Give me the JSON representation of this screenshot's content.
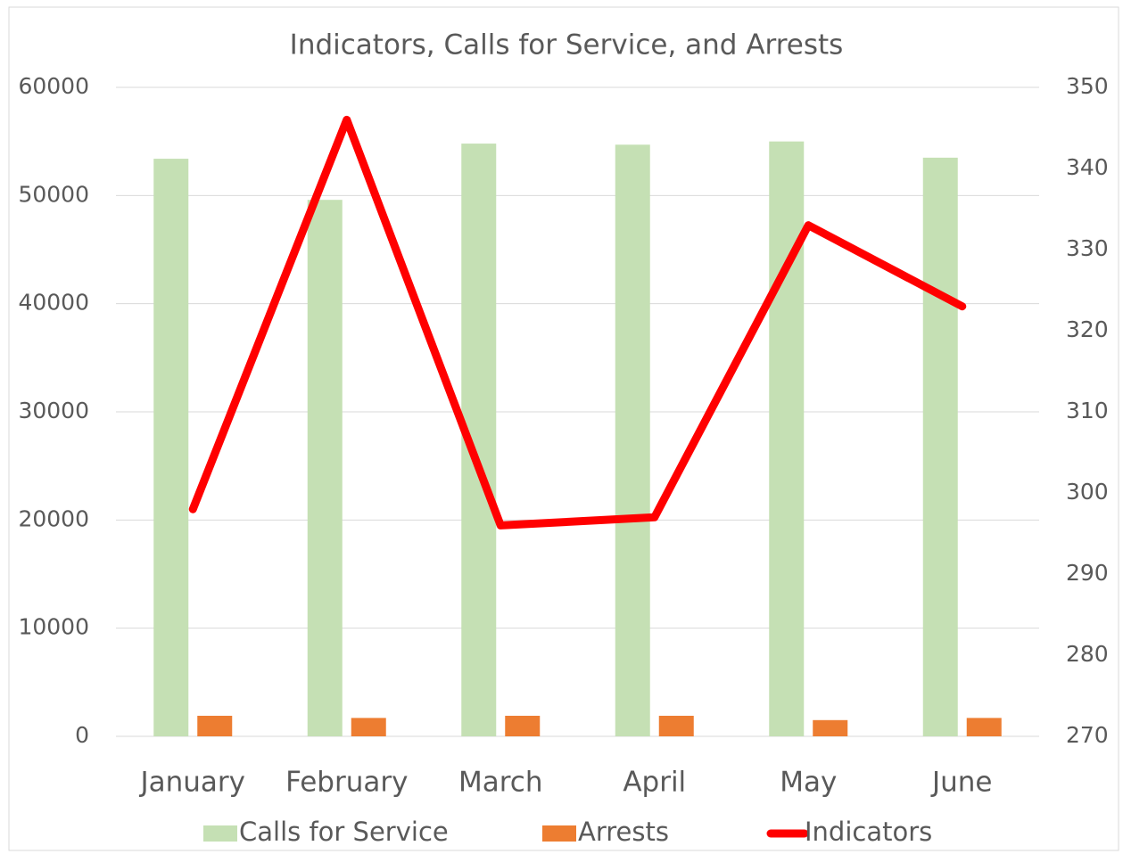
{
  "chart_data": {
    "type": "bar-line",
    "title": "Indicators, Calls for Service, and Arrests",
    "categories": [
      "January",
      "February",
      "March",
      "April",
      "May",
      "June"
    ],
    "series": [
      {
        "name": "Calls for Service",
        "type": "bar",
        "color": "#c5e0b4",
        "values": [
          53400,
          49600,
          54800,
          54700,
          55000,
          53500
        ]
      },
      {
        "name": "Arrests",
        "type": "bar",
        "color": "#ed7d31",
        "values": [
          1900,
          1700,
          1900,
          1900,
          1500,
          1700
        ]
      },
      {
        "name": "Indicators",
        "type": "line",
        "axis": "y2",
        "color": "#ff0000",
        "values": [
          298,
          346,
          296,
          297,
          333,
          323
        ]
      }
    ],
    "ylim": [
      0,
      60000
    ],
    "yticks": [
      0,
      10000,
      20000,
      30000,
      40000,
      50000,
      60000
    ],
    "y2lim": [
      270,
      350
    ],
    "y2ticks": [
      270,
      280,
      290,
      300,
      310,
      320,
      330,
      340,
      350
    ],
    "grid": true,
    "legend": "bottom"
  }
}
